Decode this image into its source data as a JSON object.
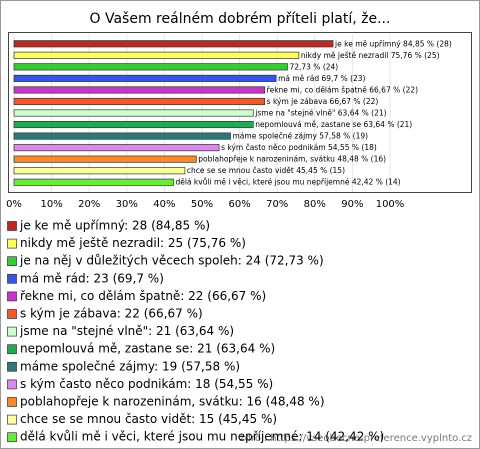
{
  "chart_data": {
    "type": "barh",
    "title": "O Vašem reálném dobrém příteli platí, že...",
    "categories": [
      "je ke mě upřímný",
      "nikdy mě ještě nezradil",
      "je na něj v důležitých věcech spoleh",
      "má mě rád",
      "řekne mi, co dělám špatně",
      "s kým je zábava",
      "jsme na \"stejné vlně\"",
      "nepomlouvá mě, zastane se",
      "máme společné zájmy",
      "s kým často něco podnikám",
      "poblahopřeje k narozeninám, svátku",
      "chce se se mnou často vidět",
      "dělá kvůli mě i věci, které jsou mu nepříjemné"
    ],
    "values": [
      84.85,
      75.76,
      72.73,
      69.7,
      66.67,
      66.67,
      63.64,
      63.64,
      57.58,
      54.55,
      48.48,
      45.45,
      42.42
    ],
    "value_labels": [
      "je ke mě upřímný 84,85 % (28)",
      "nikdy mě ještě nezradil 75,76 % (25)",
      "72,73 % (24)",
      "má mě rád 69,7 % (23)",
      "řekne mi, co dělám špatně 66,67 % (22)",
      "s kým je zábava 66,67 % (22)",
      "jsme na \"stejné vlně\" 63,64 % (21)",
      "nepomlouvá mě, zastane se 63,64 % (21)",
      "máme společné zájmy 57,58 % (19)",
      "s kým často něco podnikám 54,55 % (18)",
      "poblahopřeje k narozeninám, svátku 48,48 % (16)",
      "chce se se mnou často vidět 45,45 % (15)",
      "dělá kvůli mě i věci, které jsou mu nepříjemné 42,42 % (14)"
    ],
    "legend_labels": [
      "je ke mě upřímný: 28 (84,85 %)",
      "nikdy mě ještě nezradil: 25 (75,76 %)",
      "je na něj v důležitých věcech spoleh: 24 (72,73 %)",
      "má mě rád: 23 (69,7 %)",
      "řekne mi, co dělám špatně: 22 (66,67 %)",
      "s kým je zábava: 22 (66,67 %)",
      "jsme na \"stejné vlně\": 21 (63,64 %)",
      "nepomlouvá mě, zastane se: 21 (63,64 %)",
      "máme společné zájmy: 19 (57,58 %)",
      "s kým často něco podnikám: 18 (54,55 %)",
      "poblahopřeje k narozeninám, svátku: 16 (48,48 %)",
      "chce se se mnou často vidět: 15 (45,45 %)",
      "dělá kvůli mě i věci, které jsou mu nepříjemné: 14 (42,42 %)"
    ],
    "colors": [
      "#c0281e",
      "#ffff55",
      "#33cc33",
      "#3355ee",
      "#cc33cc",
      "#ff5522",
      "#ccffcc",
      "#22aa55",
      "#2e7777",
      "#dd88ee",
      "#ff8822",
      "#ffff99",
      "#66ee33"
    ],
    "xlim": [
      0,
      100
    ],
    "xticks": [
      {
        "value": 0,
        "label": "0%"
      },
      {
        "value": 10,
        "label": "10%"
      },
      {
        "value": 20,
        "label": "20%"
      },
      {
        "value": 30,
        "label": "30%"
      },
      {
        "value": 40,
        "label": "40%"
      },
      {
        "value": 50,
        "label": "50%"
      },
      {
        "value": 60,
        "label": "60%"
      },
      {
        "value": 70,
        "label": "70%"
      },
      {
        "value": 80,
        "label": "80%"
      },
      {
        "value": 90,
        "label": "90%"
      },
      {
        "value": 100,
        "label": "100%"
      }
    ],
    "grid": true,
    "source": "zdroj: https://vseobecne-preference.vyplnto.cz"
  }
}
